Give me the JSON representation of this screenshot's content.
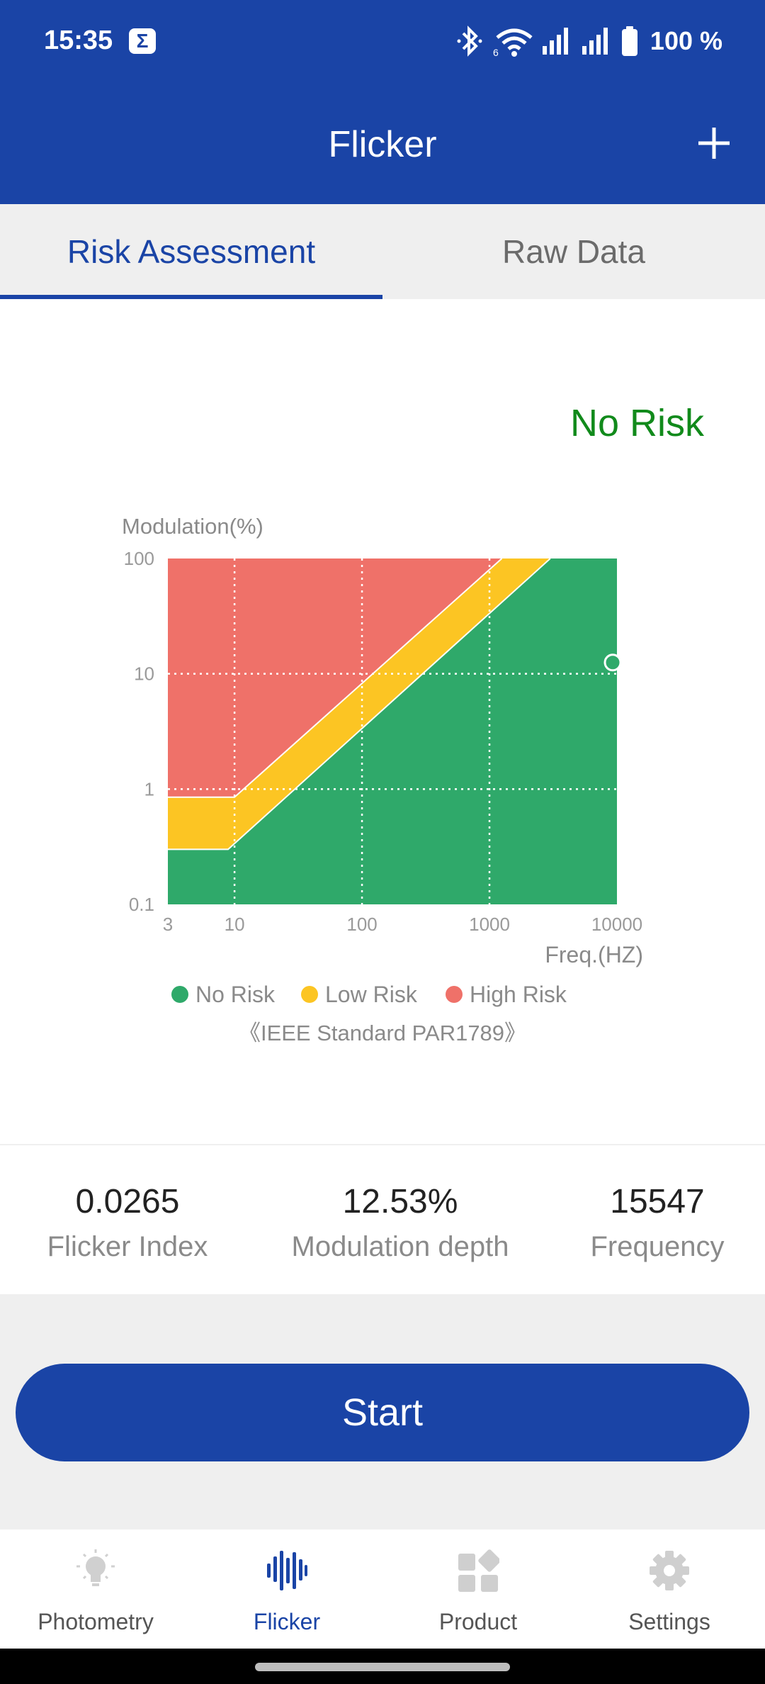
{
  "status_bar": {
    "time": "15:35",
    "notification_glyph": "Σ",
    "battery": "100 %"
  },
  "header": {
    "title": "Flicker"
  },
  "tabs": [
    {
      "label": "Risk Assessment"
    },
    {
      "label": "Raw Data"
    }
  ],
  "risk_result": "No Risk",
  "chart_data": {
    "type": "area",
    "ylabel": "Modulation(%)",
    "xlabel": "Freq.(HZ)",
    "x_scale": "log",
    "y_scale": "log",
    "xlim": [
      3,
      10000
    ],
    "ylim": [
      0.1,
      100
    ],
    "x_ticks": [
      "3",
      "10",
      "100",
      "1000",
      "10000"
    ],
    "y_ticks": [
      "100",
      "10",
      "1",
      "0.1"
    ],
    "grid": true,
    "legend_position": "bottom",
    "legend": [
      "No Risk",
      "Low Risk",
      "High Risk"
    ],
    "source_note": "《IEEE Standard PAR1789》",
    "regions": [
      {
        "name": "No Risk",
        "color": "#2fa96a",
        "upper_boundary": [
          [
            3,
            0.3
          ],
          [
            8.9,
            0.3
          ],
          [
            3000,
            100
          ]
        ]
      },
      {
        "name": "Low Risk",
        "color": "#fcc523",
        "upper_boundary": [
          [
            3,
            0.85
          ],
          [
            10,
            0.85
          ],
          [
            1250,
            100
          ]
        ]
      },
      {
        "name": "High Risk",
        "color": "#ef7169",
        "upper_boundary": [
          [
            3,
            100
          ],
          [
            10000,
            100
          ]
        ]
      }
    ],
    "point": {
      "x": 10000,
      "y": 12.53
    }
  },
  "stats": [
    {
      "value": "0.0265",
      "label": "Flicker Index"
    },
    {
      "value": "12.53%",
      "label": "Modulation depth"
    },
    {
      "value": "15547",
      "label": "Frequency"
    }
  ],
  "start_button": "Start",
  "nav": [
    {
      "label": "Photometry",
      "icon": "bulb-icon"
    },
    {
      "label": "Flicker",
      "icon": "waveform-icon"
    },
    {
      "label": "Product",
      "icon": "grid-icon"
    },
    {
      "label": "Settings",
      "icon": "gear-icon"
    }
  ],
  "colors": {
    "primary": "#1a44a6",
    "no_risk": "#2fa96a",
    "low_risk": "#fcc523",
    "high_risk": "#ef7169",
    "risk_text": "#118a1b"
  }
}
